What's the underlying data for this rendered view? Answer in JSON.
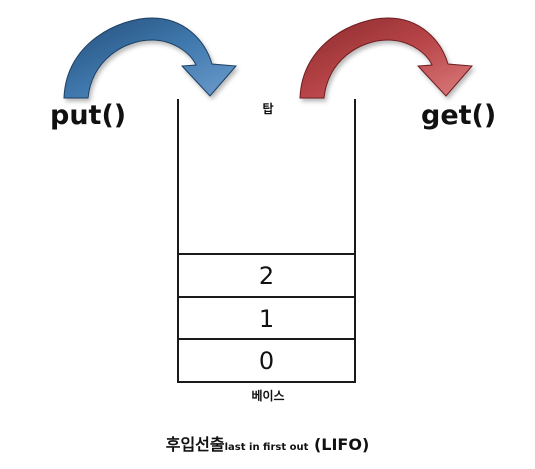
{
  "operations": {
    "put_label": "put()",
    "get_label": "get()"
  },
  "stack": {
    "top_label": "탑",
    "base_label": "베이스",
    "slots": [
      "2",
      "1",
      "0"
    ]
  },
  "caption": {
    "main": "후입선출",
    "sub": "last in first out",
    "tail": "(LIFO)"
  },
  "colors": {
    "put_arrow": "#3f78ad",
    "get_arrow": "#b84548",
    "stack_line": "#1a1a1a"
  }
}
